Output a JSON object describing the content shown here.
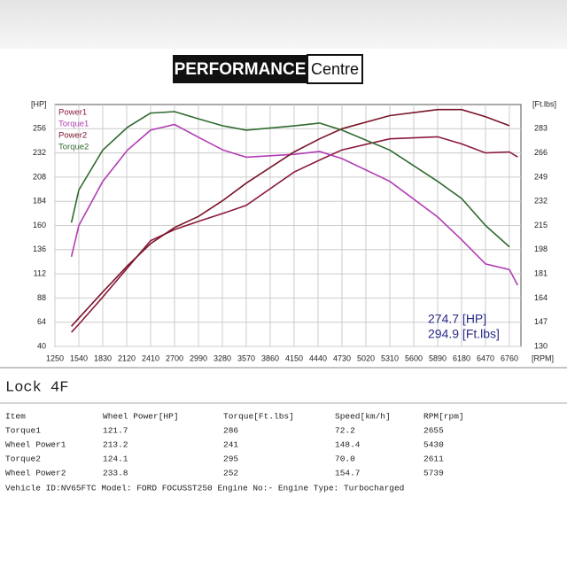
{
  "header": {
    "logo_bold": "PERFORMANCE",
    "logo_light": "Centre"
  },
  "chart_data": {
    "type": "line",
    "y_label": "[HP]",
    "y2_label": "[Ft.lbs]",
    "x_label": "[RPM]",
    "x": [
      1450,
      1540,
      1830,
      2130,
      2410,
      2700,
      2990,
      3290,
      3570,
      4150,
      4460,
      4730,
      5310,
      5890,
      6180,
      6470,
      6760,
      6860
    ],
    "series": [
      {
        "name": "Power1",
        "color": "#8b1a3c",
        "values": [
          54,
          62,
          89,
          118,
          145,
          156,
          164,
          172,
          180,
          213,
          225,
          235,
          246,
          248,
          241,
          232,
          233,
          228
        ]
      },
      {
        "name": "Torque1",
        "color": "#b23cb4",
        "axis": "y2",
        "values": [
          193,
          215,
          246,
          268,
          282,
          286,
          277,
          268,
          263,
          265,
          267,
          262,
          246,
          221,
          205,
          188,
          184,
          173
        ]
      },
      {
        "name": "Power2",
        "color": "#7a1428",
        "values": [
          60,
          68,
          94,
          120,
          142,
          158,
          169,
          185,
          202,
          233,
          246,
          256,
          269,
          275,
          275,
          268,
          259,
          null
        ]
      },
      {
        "name": "Torque2",
        "color": "#2f6a2f",
        "axis": "y2",
        "values": [
          217,
          240,
          268,
          284,
          294,
          295,
          290,
          285,
          282,
          285,
          287,
          282,
          268,
          246,
          234,
          215,
          200,
          null
        ]
      }
    ],
    "xlim": [
      1250,
      6900
    ],
    "xticks": [
      1250,
      1540,
      1830,
      2120,
      2410,
      2700,
      2990,
      3280,
      3570,
      3860,
      4150,
      4440,
      4730,
      5020,
      5310,
      5600,
      5890,
      6180,
      6470,
      6760
    ],
    "ylim": [
      40,
      280
    ],
    "yticks": [
      40,
      64,
      88,
      112,
      136,
      160,
      184,
      208,
      232,
      256
    ],
    "y2lim": [
      130,
      300
    ],
    "y2ticks": [
      130,
      147,
      164,
      181,
      198,
      215,
      232,
      249,
      266,
      283
    ],
    "grid": true,
    "legend": "upper left",
    "annotations": [
      "274.7  [HP]",
      "294.9  [Ft.lbs]"
    ]
  },
  "section_title": "Lock 4F",
  "table": {
    "header": [
      "Item",
      "Wheel Power[HP]",
      "Torque[Ft.lbs]",
      "Speed[km/h]",
      "RPM[rpm]"
    ],
    "rows": [
      [
        "Torque1",
        "121.7",
        "286",
        "72.2",
        "2655"
      ],
      [
        "Wheel Power1",
        "213.2",
        "241",
        "148.4",
        "5430"
      ],
      [
        "Torque2",
        "124.1",
        "295",
        "70.0",
        "2611"
      ],
      [
        "Wheel Power2",
        "233.8",
        "252",
        "154.7",
        "5739"
      ]
    ]
  },
  "footer": "Vehicle ID:NV65FTC Model: FORD FOCUSST250 Engine No:- Engine Type: Turbocharged"
}
